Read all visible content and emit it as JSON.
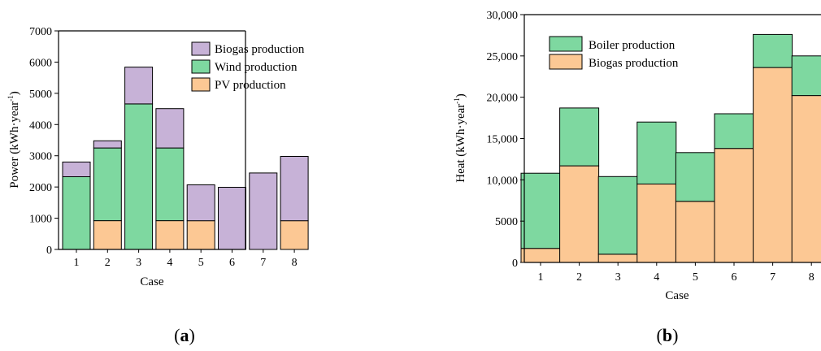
{
  "chart_data": [
    {
      "type": "bar",
      "stacked": true,
      "panel": "(a)",
      "panel_letter": "a",
      "categories": [
        "1",
        "2",
        "3",
        "4",
        "5",
        "6",
        "7",
        "8"
      ],
      "series": [
        {
          "name": "PV production",
          "color": "#fcc894",
          "values": [
            0,
            920,
            0,
            920,
            920,
            0,
            0,
            920
          ]
        },
        {
          "name": "Wind production",
          "color": "#7ed8a0",
          "values": [
            2330,
            2330,
            4660,
            2330,
            0,
            0,
            0,
            0
          ]
        },
        {
          "name": "Biogas production",
          "color": "#c7b2d7",
          "values": [
            470,
            230,
            1180,
            1260,
            1150,
            1990,
            2450,
            2060
          ]
        }
      ],
      "legend_order": [
        "Biogas production",
        "Wind production",
        "PV production"
      ],
      "xlabel": "Case",
      "ylabel": "Power (kWh·year",
      "ylabel_sup": "-1",
      "ylabel_close": ")",
      "ylim": [
        0,
        7000
      ],
      "yticks": [
        0,
        1000,
        2000,
        3000,
        4000,
        5000,
        6000,
        7000
      ],
      "ytick_labels": [
        "0",
        "1000",
        "2000",
        "3000",
        "4000",
        "5000",
        "6000",
        "7000"
      ],
      "legend_position": "top-right",
      "grid": false
    },
    {
      "type": "bar",
      "stacked": true,
      "panel": "(b)",
      "panel_letter": "b",
      "categories": [
        "1",
        "2",
        "3",
        "4",
        "5",
        "6",
        "7",
        "8"
      ],
      "series": [
        {
          "name": "Biogas production",
          "color": "#fcc894",
          "values": [
            1700,
            11700,
            1000,
            9500,
            7400,
            13800,
            23600,
            20200
          ]
        },
        {
          "name": "Boiler production",
          "color": "#7ed8a0",
          "values": [
            9100,
            7000,
            9400,
            7500,
            5900,
            4200,
            4000,
            4800
          ]
        }
      ],
      "legend_order": [
        "Boiler production",
        "Biogas production"
      ],
      "xlabel": "Case",
      "ylabel": "Heat (kWh·year",
      "ylabel_sup": "-1",
      "ylabel_close": ")",
      "ylim": [
        0,
        30000
      ],
      "yticks": [
        0,
        5000,
        10000,
        15000,
        20000,
        25000,
        30000
      ],
      "ytick_labels": [
        "0",
        "5000",
        "10,000",
        "15,000",
        "20,000",
        "25,000",
        "30,000"
      ],
      "legend_position": "top-left",
      "grid": false
    }
  ]
}
